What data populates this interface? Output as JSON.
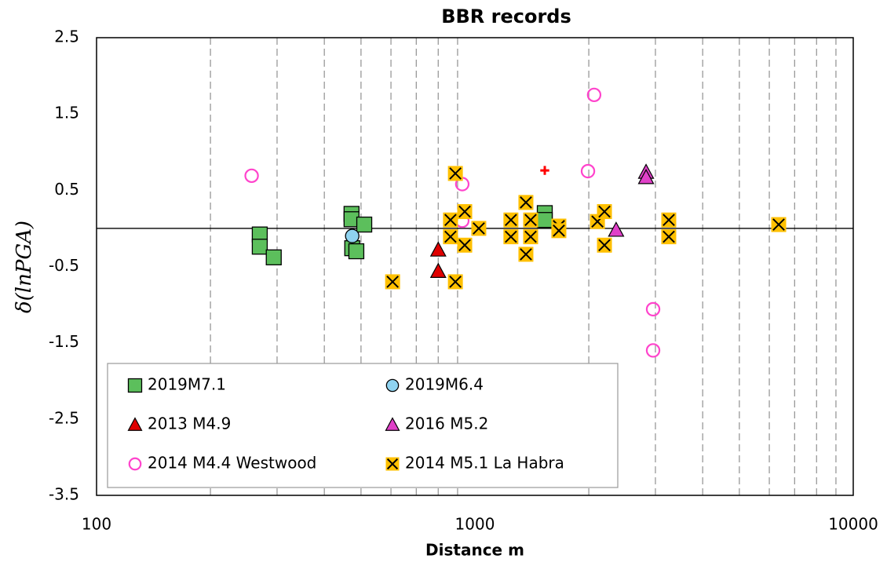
{
  "chart_data": {
    "type": "scatter",
    "title": "BBR records",
    "x_label": "Distance m",
    "y_label": "δ(lnPGA)",
    "xscale": "log",
    "xlim": [
      100,
      10000
    ],
    "xticks": [
      100,
      1000,
      10000
    ],
    "minor_xticks": [
      200,
      300,
      400,
      500,
      600,
      700,
      800,
      900,
      2000,
      3000,
      4000,
      5000,
      6000,
      7000,
      8000,
      9000
    ],
    "ylim": [
      -3.5,
      2.5
    ],
    "yticks": [
      2.5,
      1.5,
      0.5,
      -0.5,
      -1.5,
      -2.5,
      -3.5
    ],
    "grid": "x-dashed",
    "legend": "lower left",
    "series": [
      {
        "name": "2019M7.1",
        "marker": "square",
        "color": "#5cbf5c",
        "x": [
          270,
          270,
          294,
          472,
          472,
          474,
          486,
          510,
          1530,
          1530
        ],
        "values": [
          -0.08,
          -0.24,
          -0.38,
          0.19,
          0.12,
          -0.26,
          -0.3,
          0.05,
          0.2,
          0.11
        ]
      },
      {
        "name": "2019M6.4",
        "marker": "circle",
        "color": "#8fd3f0",
        "x": [
          474
        ],
        "values": [
          -0.1
        ]
      },
      {
        "name": "2013 M4.9",
        "marker": "triangle",
        "color": "#e00000",
        "x": [
          800,
          800
        ],
        "values": [
          -0.28,
          -0.56
        ]
      },
      {
        "name": "2016 M5.2",
        "marker": "triangle",
        "color": "#e040c8",
        "x": [
          2834,
          2834,
          2362
        ],
        "values": [
          0.74,
          0.67,
          -0.02
        ]
      },
      {
        "name": "2014 M4.4 Westwood",
        "marker": "open-circle",
        "color": "#ff44cc",
        "x": [
          257,
          926,
          926,
          2066,
          1990,
          2958,
          2958
        ],
        "values": [
          0.69,
          0.58,
          0.1,
          1.75,
          0.75,
          -1.06,
          -1.6
        ]
      },
      {
        "name": "2014 M5.1 La Habra",
        "marker": "x-box",
        "color": "#ffc000",
        "x": [
          606,
          888,
          888,
          862,
          862,
          940,
          940,
          1024,
          1245,
          1245,
          1364,
          1364,
          1404,
          1404,
          1667,
          1667,
          2108,
          2200,
          2200,
          3254,
          3254,
          6353
        ],
        "values": [
          -0.7,
          0.72,
          -0.7,
          0.11,
          -0.11,
          0.22,
          -0.22,
          0,
          0.11,
          -0.11,
          0.34,
          -0.34,
          0.11,
          -0.11,
          0.03,
          -0.03,
          0.09,
          0.22,
          -0.22,
          0.11,
          -0.11,
          0.05
        ]
      },
      {
        "marker": "plus",
        "color": "#ff0000",
        "x": [
          1530
        ],
        "values": [
          0.76
        ]
      }
    ]
  }
}
